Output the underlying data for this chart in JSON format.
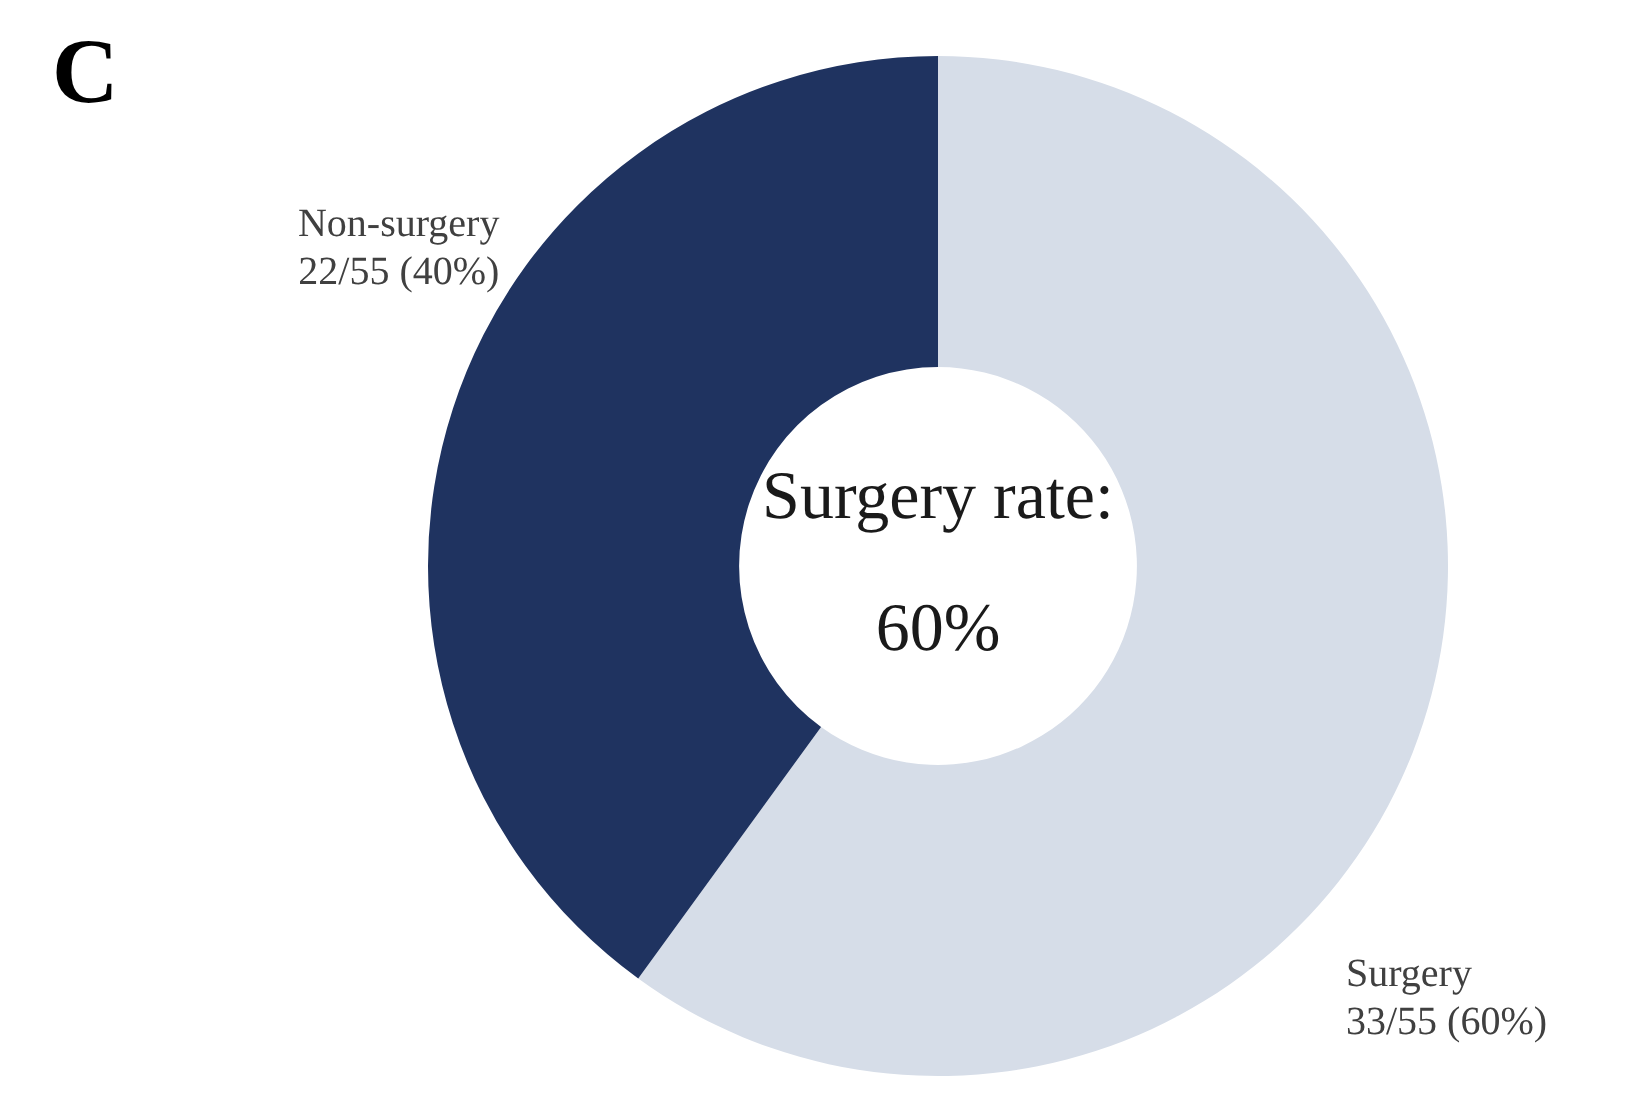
{
  "chart_data": {
    "type": "donut",
    "title": "C",
    "categories": [
      "Surgery",
      "Non-surgery"
    ],
    "values": [
      33,
      22
    ],
    "colors": [
      "#d6dde8",
      "#1f3360"
    ],
    "value_labels": [
      "33/55 (60%)",
      "22/55 (40%)"
    ],
    "annotations": [
      "Surgery rate:",
      "60%"
    ],
    "legend": false
  }
}
